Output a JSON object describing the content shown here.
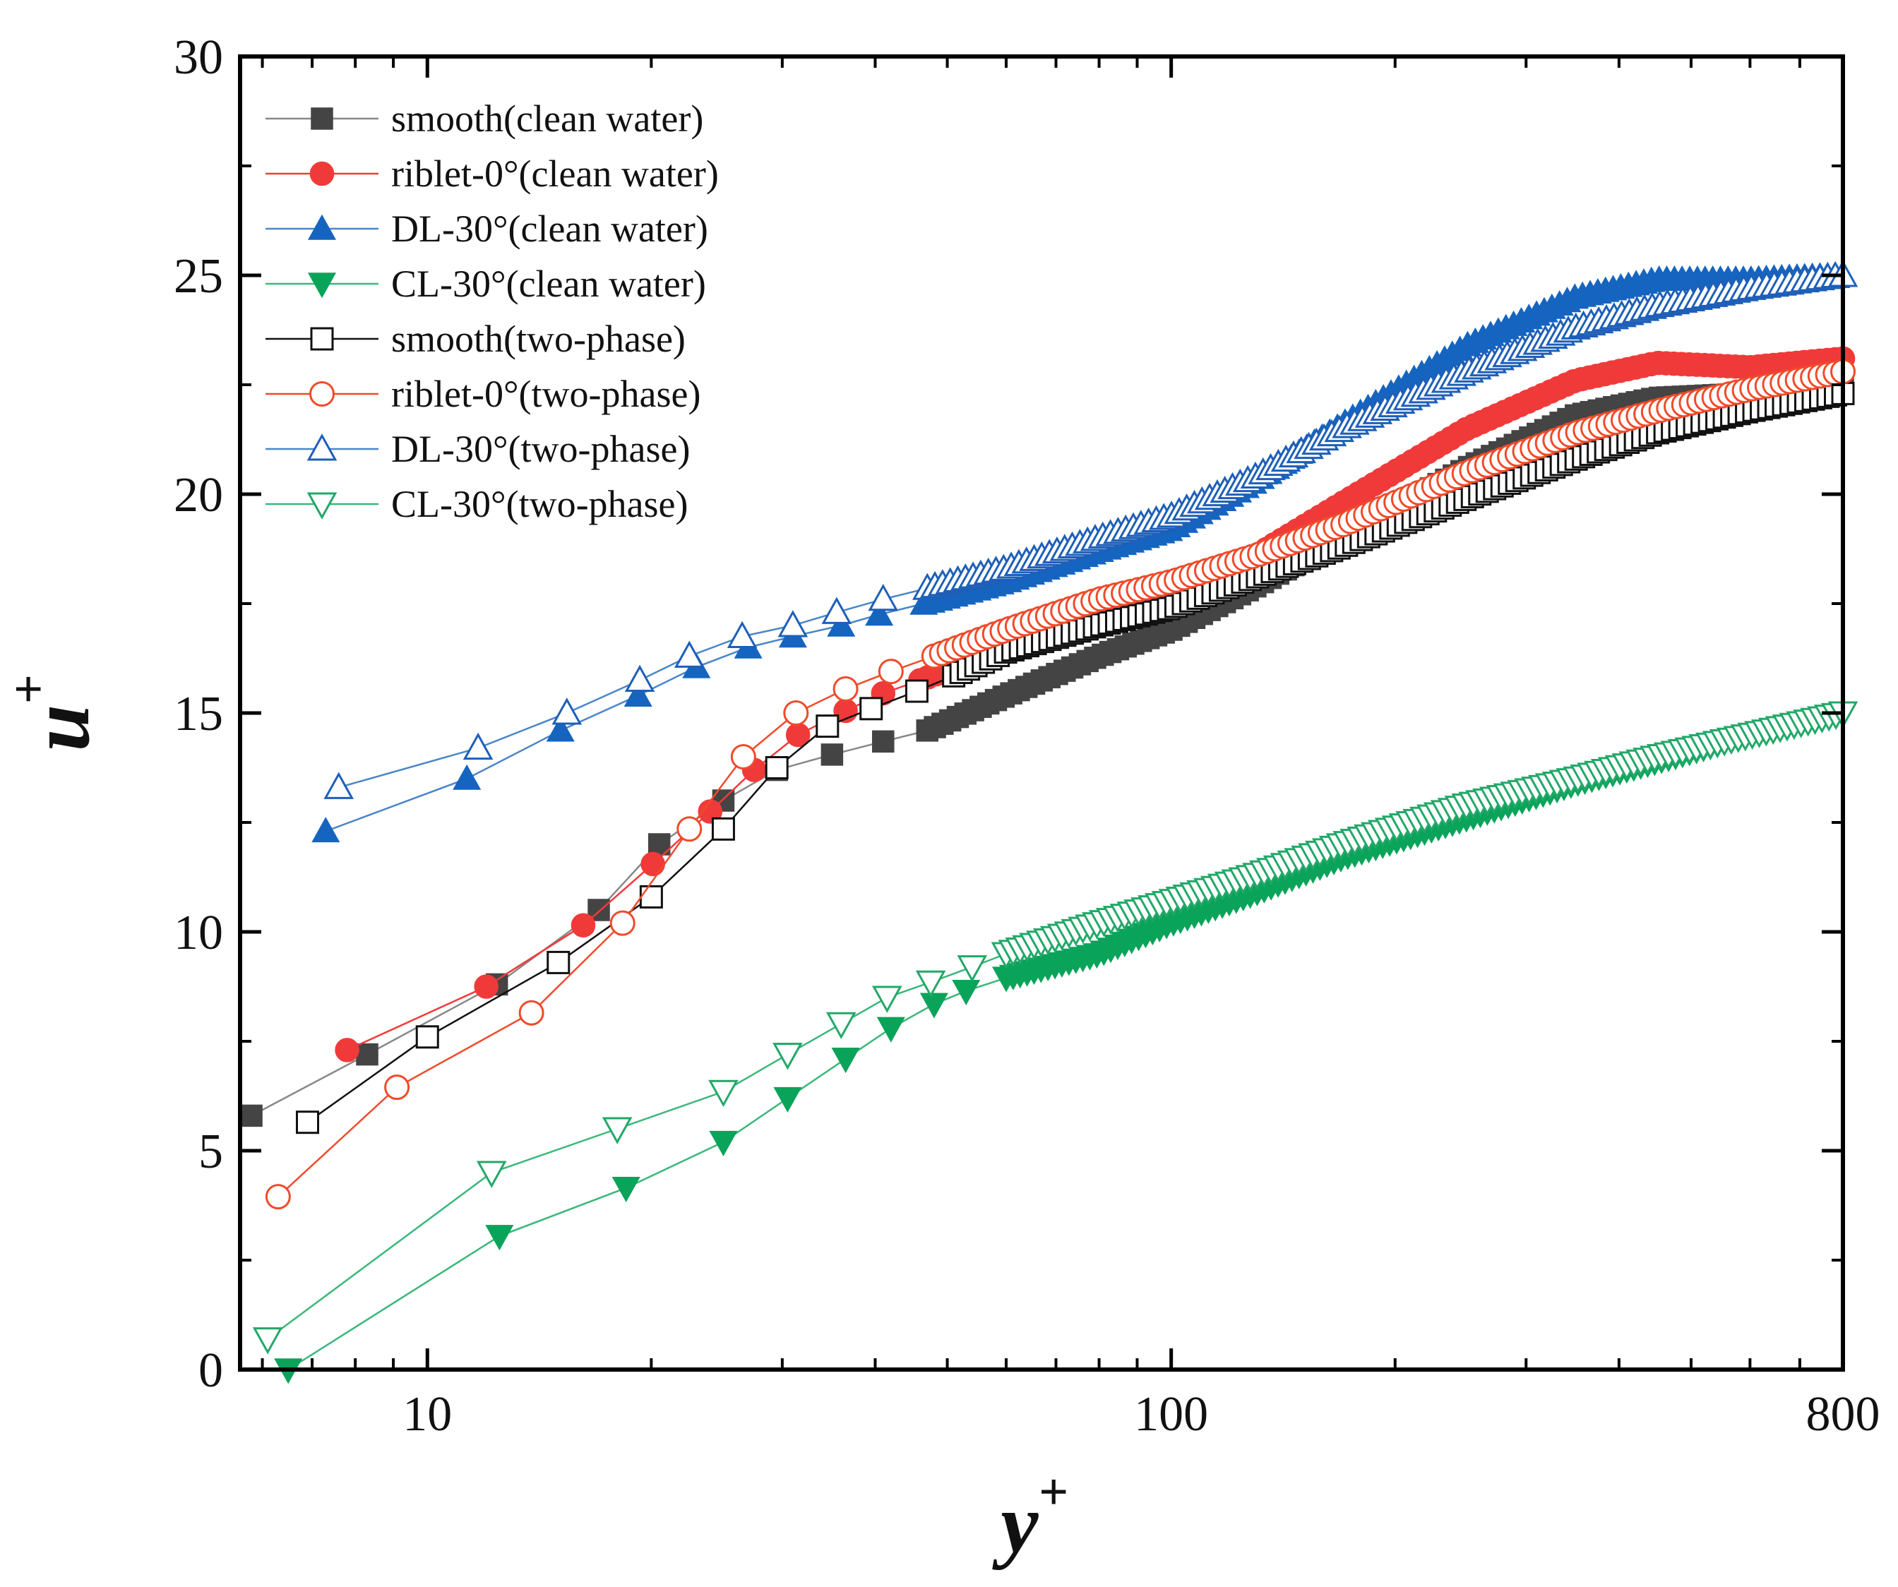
{
  "chart_data": {
    "type": "line",
    "title": "",
    "xlabel": "y",
    "xlabel_sup": "+",
    "ylabel": "u",
    "ylabel_sup": "+",
    "xscale": "log",
    "xlim": [
      5.6,
      800
    ],
    "ylim": [
      0,
      30
    ],
    "xticks": [
      {
        "value": 10,
        "label": "10"
      },
      {
        "value": 100,
        "label": "100"
      },
      {
        "value": 800,
        "label": "800"
      }
    ],
    "yticks": [
      {
        "value": 0,
        "label": "0"
      },
      {
        "value": 5,
        "label": "5"
      },
      {
        "value": 10,
        "label": "10"
      },
      {
        "value": 15,
        "label": "15"
      },
      {
        "value": 20,
        "label": "20"
      },
      {
        "value": 25,
        "label": "25"
      },
      {
        "value": 30,
        "label": "30"
      }
    ],
    "legend_position": "top-left",
    "series": [
      {
        "name": "smooth(clean water)",
        "color": "#444444",
        "line_color": "#888888",
        "marker": "square",
        "filled": true,
        "points": [
          [
            5.8,
            5.8
          ],
          [
            8.3,
            7.2
          ],
          [
            12.4,
            8.8
          ],
          [
            17.0,
            10.5
          ],
          [
            20.5,
            12.0
          ],
          [
            25.0,
            13.0
          ],
          [
            29.5,
            13.7
          ],
          [
            35.0,
            14.05
          ],
          [
            41.0,
            14.35
          ],
          [
            47.0,
            14.6
          ]
        ],
        "tail": [
          [
            47,
            14.6
          ],
          [
            60,
            15.4
          ],
          [
            80,
            16.3
          ],
          [
            100,
            16.9
          ],
          [
            130,
            17.9
          ],
          [
            170,
            19.0
          ],
          [
            250,
            20.6
          ],
          [
            350,
            21.8
          ],
          [
            450,
            22.2
          ],
          [
            600,
            22.3
          ],
          [
            800,
            22.5
          ]
        ]
      },
      {
        "name": "riblet-0°(clean water)",
        "color": "#f03a3a",
        "line_color": "#f03a3a",
        "marker": "circle",
        "filled": true,
        "points": [
          [
            7.8,
            7.3
          ],
          [
            12.0,
            8.75
          ],
          [
            16.2,
            10.15
          ],
          [
            20.1,
            11.55
          ],
          [
            24.0,
            12.75
          ],
          [
            27.5,
            13.7
          ],
          [
            31.5,
            14.5
          ],
          [
            36.5,
            15.05
          ],
          [
            41.0,
            15.45
          ],
          [
            46.0,
            15.75
          ]
        ],
        "tail": [
          [
            46,
            15.75
          ],
          [
            60,
            16.5
          ],
          [
            80,
            17.3
          ],
          [
            100,
            17.7
          ],
          [
            130,
            18.6
          ],
          [
            170,
            19.8
          ],
          [
            250,
            21.5
          ],
          [
            350,
            22.6
          ],
          [
            450,
            23.0
          ],
          [
            600,
            22.9
          ],
          [
            800,
            23.1
          ]
        ]
      },
      {
        "name": "DL-30°(clean water)",
        "color": "#1565c0",
        "line_color": "#4a86c8",
        "marker": "triangle-up",
        "filled": true,
        "points": [
          [
            7.3,
            12.3
          ],
          [
            11.3,
            13.5
          ],
          [
            15.1,
            14.6
          ],
          [
            19.2,
            15.4
          ],
          [
            23.0,
            16.05
          ],
          [
            27.0,
            16.5
          ],
          [
            31.0,
            16.75
          ],
          [
            36.0,
            17.0
          ],
          [
            40.5,
            17.25
          ],
          [
            46.5,
            17.5
          ]
        ],
        "tail": [
          [
            46.5,
            17.5
          ],
          [
            60,
            18.0
          ],
          [
            80,
            18.7
          ],
          [
            100,
            19.2
          ],
          [
            130,
            20.3
          ],
          [
            170,
            21.6
          ],
          [
            250,
            23.4
          ],
          [
            350,
            24.5
          ],
          [
            450,
            24.9
          ],
          [
            600,
            24.9
          ],
          [
            800,
            25.0
          ]
        ]
      },
      {
        "name": "CL-30°(clean water)",
        "color": "#0aa35a",
        "line_color": "#3bb77a",
        "marker": "triangle-down",
        "filled": true,
        "points": [
          [
            6.5,
            0.0
          ],
          [
            12.5,
            3.05
          ],
          [
            18.5,
            4.15
          ],
          [
            25.0,
            5.2
          ],
          [
            30.5,
            6.2
          ],
          [
            36.5,
            7.1
          ],
          [
            42.0,
            7.8
          ],
          [
            48.0,
            8.35
          ],
          [
            53.0,
            8.65
          ],
          [
            60.0,
            8.95
          ]
        ],
        "tail": [
          [
            60,
            8.95
          ],
          [
            80,
            9.5
          ],
          [
            100,
            10.2
          ],
          [
            130,
            10.9
          ],
          [
            170,
            11.7
          ],
          [
            250,
            12.6
          ],
          [
            350,
            13.4
          ],
          [
            450,
            13.9
          ],
          [
            600,
            14.5
          ],
          [
            800,
            15.0
          ]
        ]
      },
      {
        "name": "smooth(two-phase)",
        "color": "#111111",
        "line_color": "#111111",
        "marker": "square",
        "filled": false,
        "points": [
          [
            6.9,
            5.65
          ],
          [
            10.0,
            7.6
          ],
          [
            15.0,
            9.3
          ],
          [
            20.0,
            10.8
          ],
          [
            25.0,
            12.35
          ],
          [
            29.5,
            13.75
          ],
          [
            34.5,
            14.7
          ],
          [
            39.5,
            15.1
          ],
          [
            45.5,
            15.5
          ],
          [
            51.0,
            15.85
          ]
        ],
        "tail": [
          [
            51,
            15.85
          ],
          [
            60,
            16.4
          ],
          [
            80,
            17.0
          ],
          [
            100,
            17.4
          ],
          [
            130,
            18.1
          ],
          [
            170,
            18.8
          ],
          [
            250,
            19.9
          ],
          [
            350,
            20.8
          ],
          [
            450,
            21.4
          ],
          [
            600,
            21.9
          ],
          [
            800,
            22.3
          ]
        ]
      },
      {
        "name": "riblet-0°(two-phase)",
        "color": "#f04a2a",
        "line_color": "#f04a2a",
        "marker": "circle",
        "filled": false,
        "points": [
          [
            6.3,
            3.95
          ],
          [
            9.1,
            6.45
          ],
          [
            13.8,
            8.15
          ],
          [
            18.3,
            10.2
          ],
          [
            22.5,
            12.35
          ],
          [
            26.6,
            14.0
          ],
          [
            31.3,
            15.0
          ],
          [
            36.5,
            15.55
          ],
          [
            42.0,
            15.95
          ],
          [
            48.0,
            16.3
          ]
        ],
        "tail": [
          [
            48,
            16.3
          ],
          [
            60,
            16.9
          ],
          [
            80,
            17.6
          ],
          [
            100,
            18.0
          ],
          [
            130,
            18.6
          ],
          [
            170,
            19.3
          ],
          [
            250,
            20.5
          ],
          [
            350,
            21.4
          ],
          [
            450,
            21.9
          ],
          [
            600,
            22.4
          ],
          [
            800,
            22.8
          ]
        ]
      },
      {
        "name": "DL-30°(two-phase)",
        "color": "#1e5fb8",
        "line_color": "#4a86c8",
        "marker": "triangle-up",
        "filled": false,
        "points": [
          [
            7.6,
            13.3
          ],
          [
            11.7,
            14.2
          ],
          [
            15.4,
            15.0
          ],
          [
            19.3,
            15.75
          ],
          [
            22.5,
            16.3
          ],
          [
            26.5,
            16.75
          ],
          [
            31.0,
            17.0
          ],
          [
            35.5,
            17.3
          ],
          [
            41.0,
            17.6
          ],
          [
            47.0,
            17.85
          ]
        ],
        "tail": [
          [
            47,
            17.85
          ],
          [
            60,
            18.3
          ],
          [
            80,
            19.0
          ],
          [
            100,
            19.5
          ],
          [
            130,
            20.4
          ],
          [
            170,
            21.5
          ],
          [
            250,
            22.8
          ],
          [
            350,
            23.8
          ],
          [
            450,
            24.3
          ],
          [
            600,
            24.7
          ],
          [
            800,
            25.0
          ]
        ]
      },
      {
        "name": "CL-30°(two-phase)",
        "color": "#22a868",
        "line_color": "#3bb77a",
        "marker": "triangle-down",
        "filled": false,
        "points": [
          [
            6.1,
            0.7
          ],
          [
            12.2,
            4.5
          ],
          [
            18.0,
            5.5
          ],
          [
            25.0,
            6.35
          ],
          [
            30.5,
            7.2
          ],
          [
            36.0,
            7.9
          ],
          [
            41.5,
            8.5
          ],
          [
            47.5,
            8.85
          ],
          [
            54.0,
            9.2
          ],
          [
            60.0,
            9.5
          ]
        ],
        "tail": [
          [
            60,
            9.5
          ],
          [
            80,
            10.2
          ],
          [
            100,
            10.7
          ],
          [
            130,
            11.3
          ],
          [
            170,
            12.0
          ],
          [
            250,
            12.9
          ],
          [
            350,
            13.5
          ],
          [
            450,
            14.0
          ],
          [
            600,
            14.5
          ],
          [
            800,
            15.0
          ]
        ]
      }
    ]
  }
}
